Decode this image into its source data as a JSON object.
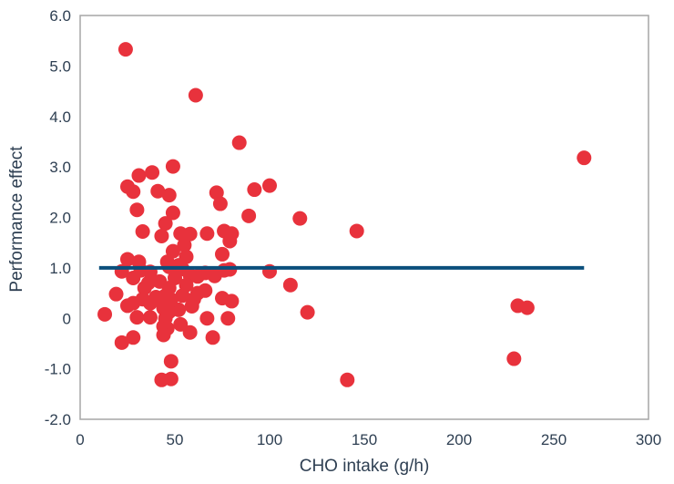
{
  "chart_data": {
    "type": "scatter",
    "title": "",
    "xlabel": "CHO intake (g/h)",
    "ylabel": "Performance effect",
    "xlim": [
      0,
      300
    ],
    "ylim": [
      -2,
      6
    ],
    "xticks": [
      0,
      50,
      100,
      150,
      200,
      250,
      300
    ],
    "yticks": [
      6,
      5,
      4,
      3,
      2,
      1,
      0,
      -1,
      -2
    ],
    "xtick_labels": [
      "0",
      "50",
      "100",
      "150",
      "200",
      "250",
      "300"
    ],
    "ytick_labels": [
      "6.0",
      "5.0",
      "4.0",
      "3.0",
      "2.0",
      "1.0",
      "0",
      "-1.0",
      "-2.0"
    ],
    "grid": false,
    "legend": "none",
    "colors": {
      "points": "#e8323c",
      "reference_line": "#0b4f7c",
      "frame": "#a6a6a6",
      "text": "#2e3f52"
    },
    "reference_line": {
      "x": [
        10,
        266
      ],
      "y": 1.0
    },
    "points": [
      {
        "x": 24,
        "y": 5.33
      },
      {
        "x": 61,
        "y": 4.42
      },
      {
        "x": 84,
        "y": 3.48
      },
      {
        "x": 266,
        "y": 3.18
      },
      {
        "x": 49,
        "y": 3.01
      },
      {
        "x": 38,
        "y": 2.89
      },
      {
        "x": 31,
        "y": 2.83
      },
      {
        "x": 25,
        "y": 2.61
      },
      {
        "x": 28,
        "y": 2.51
      },
      {
        "x": 41,
        "y": 2.52
      },
      {
        "x": 47,
        "y": 2.44
      },
      {
        "x": 72,
        "y": 2.49
      },
      {
        "x": 74,
        "y": 2.27
      },
      {
        "x": 92,
        "y": 2.55
      },
      {
        "x": 100,
        "y": 2.63
      },
      {
        "x": 30,
        "y": 2.15
      },
      {
        "x": 49,
        "y": 2.09
      },
      {
        "x": 89,
        "y": 2.03
      },
      {
        "x": 116,
        "y": 1.98
      },
      {
        "x": 45,
        "y": 1.88
      },
      {
        "x": 146,
        "y": 1.73
      },
      {
        "x": 33,
        "y": 1.72
      },
      {
        "x": 53,
        "y": 1.68
      },
      {
        "x": 58,
        "y": 1.67
      },
      {
        "x": 67,
        "y": 1.68
      },
      {
        "x": 76,
        "y": 1.73
      },
      {
        "x": 80,
        "y": 1.68
      },
      {
        "x": 43,
        "y": 1.63
      },
      {
        "x": 79,
        "y": 1.53
      },
      {
        "x": 55,
        "y": 1.45
      },
      {
        "x": 49,
        "y": 1.33
      },
      {
        "x": 75,
        "y": 1.27
      },
      {
        "x": 56,
        "y": 1.22
      },
      {
        "x": 25,
        "y": 1.17
      },
      {
        "x": 31,
        "y": 1.12
      },
      {
        "x": 46,
        "y": 1.12
      },
      {
        "x": 52,
        "y": 1.05
      },
      {
        "x": 47,
        "y": 1.02
      },
      {
        "x": 54,
        "y": 0.98
      },
      {
        "x": 76,
        "y": 0.95
      },
      {
        "x": 79,
        "y": 0.97
      },
      {
        "x": 100,
        "y": 0.93
      },
      {
        "x": 22,
        "y": 0.93
      },
      {
        "x": 32,
        "y": 0.95
      },
      {
        "x": 37,
        "y": 0.92
      },
      {
        "x": 66,
        "y": 0.9
      },
      {
        "x": 58,
        "y": 0.85
      },
      {
        "x": 62,
        "y": 0.83
      },
      {
        "x": 71,
        "y": 0.84
      },
      {
        "x": 28,
        "y": 0.8
      },
      {
        "x": 50,
        "y": 0.8
      },
      {
        "x": 42,
        "y": 0.73
      },
      {
        "x": 36,
        "y": 0.7
      },
      {
        "x": 56,
        "y": 0.66
      },
      {
        "x": 111,
        "y": 0.66
      },
      {
        "x": 34,
        "y": 0.6
      },
      {
        "x": 47,
        "y": 0.6
      },
      {
        "x": 66,
        "y": 0.55
      },
      {
        "x": 62,
        "y": 0.5
      },
      {
        "x": 19,
        "y": 0.48
      },
      {
        "x": 45,
        "y": 0.45
      },
      {
        "x": 54,
        "y": 0.45
      },
      {
        "x": 40,
        "y": 0.42
      },
      {
        "x": 75,
        "y": 0.4
      },
      {
        "x": 33,
        "y": 0.38
      },
      {
        "x": 43,
        "y": 0.35
      },
      {
        "x": 48,
        "y": 0.37
      },
      {
        "x": 60,
        "y": 0.38
      },
      {
        "x": 80,
        "y": 0.34
      },
      {
        "x": 28,
        "y": 0.3
      },
      {
        "x": 37,
        "y": 0.3
      },
      {
        "x": 25,
        "y": 0.25
      },
      {
        "x": 59,
        "y": 0.24
      },
      {
        "x": 231,
        "y": 0.25
      },
      {
        "x": 236,
        "y": 0.21
      },
      {
        "x": 44,
        "y": 0.2
      },
      {
        "x": 52,
        "y": 0.17
      },
      {
        "x": 120,
        "y": 0.12
      },
      {
        "x": 47,
        "y": 0.13
      },
      {
        "x": 13,
        "y": 0.08
      },
      {
        "x": 30,
        "y": 0.02
      },
      {
        "x": 37,
        "y": 0.02
      },
      {
        "x": 45,
        "y": 0.0
      },
      {
        "x": 67,
        "y": 0.0
      },
      {
        "x": 78,
        "y": 0.0
      },
      {
        "x": 53,
        "y": -0.12
      },
      {
        "x": 44,
        "y": -0.16
      },
      {
        "x": 46,
        "y": -0.2
      },
      {
        "x": 58,
        "y": -0.28
      },
      {
        "x": 44,
        "y": -0.33
      },
      {
        "x": 28,
        "y": -0.38
      },
      {
        "x": 70,
        "y": -0.38
      },
      {
        "x": 22,
        "y": -0.48
      },
      {
        "x": 48,
        "y": -0.85
      },
      {
        "x": 229,
        "y": -0.8
      },
      {
        "x": 43,
        "y": -1.22
      },
      {
        "x": 48,
        "y": -1.2
      },
      {
        "x": 141,
        "y": -1.22
      }
    ]
  }
}
